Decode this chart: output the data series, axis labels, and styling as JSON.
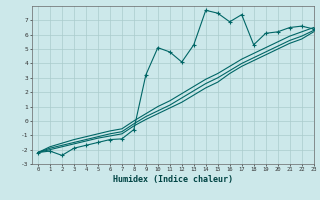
{
  "xlabel": "Humidex (Indice chaleur)",
  "ylabel": "",
  "background_color": "#cce8ea",
  "grid_color": "#aacccc",
  "line_color": "#006666",
  "x_data": [
    0,
    1,
    2,
    3,
    4,
    5,
    6,
    7,
    8,
    9,
    10,
    11,
    12,
    13,
    14,
    15,
    16,
    17,
    18,
    19,
    20,
    21,
    22,
    23
  ],
  "y_main": [
    -2.2,
    -2.1,
    -2.4,
    -1.9,
    -1.7,
    -1.5,
    -1.3,
    -1.25,
    -0.6,
    3.2,
    5.1,
    4.8,
    4.1,
    5.3,
    7.7,
    7.5,
    6.9,
    7.4,
    5.3,
    6.1,
    6.2,
    6.5,
    6.6,
    6.4
  ],
  "y_line1": [
    -2.2,
    -1.8,
    -1.55,
    -1.3,
    -1.1,
    -0.9,
    -0.7,
    -0.55,
    0.0,
    0.5,
    1.0,
    1.4,
    1.9,
    2.4,
    2.9,
    3.3,
    3.8,
    4.3,
    4.7,
    5.1,
    5.5,
    5.9,
    6.2,
    6.5
  ],
  "y_line2": [
    -2.2,
    -1.9,
    -1.7,
    -1.5,
    -1.3,
    -1.1,
    -0.9,
    -0.75,
    -0.2,
    0.3,
    0.7,
    1.1,
    1.6,
    2.1,
    2.6,
    3.0,
    3.5,
    4.0,
    4.4,
    4.8,
    5.2,
    5.6,
    5.9,
    6.3
  ],
  "y_line3": [
    -2.2,
    -2.0,
    -1.8,
    -1.6,
    -1.4,
    -1.2,
    -1.05,
    -0.9,
    -0.35,
    0.1,
    0.5,
    0.9,
    1.3,
    1.8,
    2.3,
    2.7,
    3.3,
    3.8,
    4.2,
    4.6,
    5.0,
    5.4,
    5.7,
    6.2
  ],
  "ylim": [
    -3,
    8
  ],
  "xlim": [
    -0.5,
    23
  ],
  "yticks": [
    -3,
    -2,
    -1,
    0,
    1,
    2,
    3,
    4,
    5,
    6,
    7
  ],
  "xticks": [
    0,
    1,
    2,
    3,
    4,
    5,
    6,
    7,
    8,
    9,
    10,
    11,
    12,
    13,
    14,
    15,
    16,
    17,
    18,
    19,
    20,
    21,
    22,
    23
  ],
  "marker": "+",
  "marker_size": 3,
  "line_width": 0.8
}
